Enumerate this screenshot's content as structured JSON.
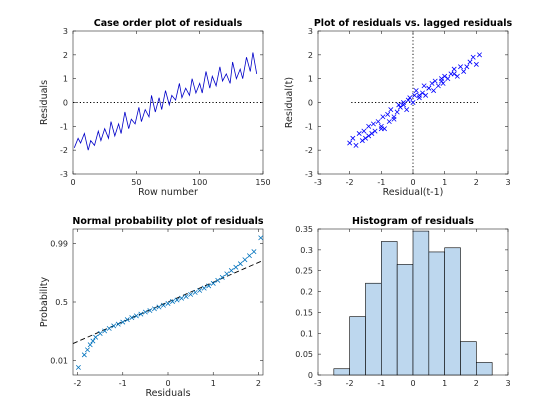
{
  "colors": {
    "residual_line": "#0000c8",
    "lag_marker": "#0000ff",
    "prob_marker": "#0072bd",
    "hist_fill": "#bdd7ee"
  },
  "chart_data": [
    {
      "type": "line",
      "title": "Case order plot of residuals",
      "xlabel": "Row number",
      "ylabel": "Residuals",
      "xlim": [
        0,
        150
      ],
      "ylim": [
        -3,
        3
      ],
      "xticks": [
        0,
        50,
        100,
        150
      ],
      "yticks": [
        -3,
        -2,
        -1,
        0,
        1,
        2,
        3
      ],
      "reference_line": {
        "y": 0,
        "style": "dotted"
      },
      "series": [
        {
          "x": [
            1,
            4,
            6,
            9,
            12,
            14,
            17,
            20,
            22,
            25,
            28,
            30,
            33,
            36,
            38,
            41,
            44,
            46,
            49,
            52,
            54,
            57,
            60,
            62,
            65,
            68,
            70,
            73,
            76,
            78,
            81,
            84,
            86,
            89,
            92,
            94,
            97,
            100,
            102,
            105,
            108,
            110,
            113,
            116,
            118,
            121,
            124,
            126,
            129,
            132,
            134,
            137,
            140,
            142,
            145
          ],
          "y": [
            -1.9,
            -1.5,
            -1.7,
            -1.3,
            -2.0,
            -1.6,
            -1.8,
            -1.2,
            -1.6,
            -1.1,
            -1.5,
            -0.8,
            -1.4,
            -0.9,
            -1.3,
            -0.4,
            -1.1,
            -0.7,
            -0.9,
            -0.2,
            -0.8,
            -0.3,
            -0.6,
            0.3,
            -0.4,
            0.2,
            -0.3,
            0.5,
            -0.1,
            0.3,
            0.1,
            0.8,
            0.2,
            0.6,
            0.3,
            1.0,
            0.4,
            0.8,
            0.4,
            1.3,
            0.6,
            1.1,
            0.7,
            1.5,
            0.9,
            1.2,
            0.8,
            1.7,
            1.0,
            1.4,
            1.0,
            1.9,
            1.3,
            2.1,
            1.2
          ]
        }
      ]
    },
    {
      "type": "scatter",
      "title": "Plot of residuals vs. lagged residuals",
      "xlabel": "Residual(t-1)",
      "ylabel": "Residual(t)",
      "xlim": [
        -3,
        3
      ],
      "ylim": [
        -3,
        3
      ],
      "xticks": [
        -3,
        -2,
        -1,
        0,
        1,
        2,
        3
      ],
      "yticks": [
        -3,
        -2,
        -1,
        0,
        1,
        2,
        3
      ],
      "reference_lines": {
        "x": 0,
        "y": 0,
        "style": "dotted"
      },
      "series": [
        {
          "x": [
            -2.0,
            -1.9,
            -1.8,
            -1.7,
            -1.6,
            -1.55,
            -1.5,
            -1.4,
            -1.3,
            -1.25,
            -1.2,
            -1.1,
            -1.0,
            -0.95,
            -0.9,
            -0.8,
            -0.75,
            -0.7,
            -0.6,
            -0.5,
            -0.45,
            -0.4,
            -0.3,
            -0.2,
            -0.15,
            -0.1,
            0.0,
            0.05,
            0.1,
            0.2,
            0.3,
            0.35,
            0.4,
            0.5,
            0.6,
            0.65,
            0.7,
            0.8,
            0.9,
            0.95,
            1.0,
            1.1,
            1.2,
            1.3,
            1.4,
            1.5,
            1.6,
            1.8,
            1.9,
            2.0,
            2.1,
            1.7,
            1.3,
            0.9,
            0.5,
            0.2,
            -0.3,
            -0.6,
            -1.0,
            -1.4
          ],
          "y": [
            -1.7,
            -1.5,
            -1.8,
            -1.3,
            -1.6,
            -1.2,
            -1.5,
            -1.0,
            -1.3,
            -0.9,
            -1.2,
            -0.8,
            -1.0,
            -0.6,
            -1.1,
            -0.5,
            -0.8,
            -0.3,
            -0.6,
            -0.4,
            -0.1,
            -0.2,
            0.0,
            -0.3,
            0.1,
            0.2,
            0.0,
            0.3,
            0.5,
            0.2,
            0.4,
            0.7,
            0.3,
            0.6,
            0.8,
            0.5,
            0.9,
            0.7,
            1.0,
            0.8,
            1.1,
            1.0,
            1.2,
            1.4,
            1.1,
            1.5,
            1.3,
            1.7,
            1.9,
            1.6,
            2.0,
            1.5,
            1.2,
            0.9,
            0.6,
            0.3,
            -0.1,
            -0.7,
            -1.1,
            -1.4
          ]
        }
      ]
    },
    {
      "type": "scatter",
      "title": "Normal probability plot of residuals",
      "xlabel": "Residuals",
      "ylabel": "Probability",
      "xlim": [
        -2.1,
        2.1
      ],
      "ylim": [
        -2.9,
        2.9
      ],
      "xticks": [
        -2,
        -1,
        0,
        1,
        2
      ],
      "yticks": [
        -2.3263,
        0,
        2.3263
      ],
      "ytick_labels": [
        "0.01",
        "0.5",
        "0.99"
      ],
      "reference_line": {
        "from": [
          -2.1,
          -1.65
        ],
        "to": [
          2.1,
          1.65
        ],
        "style": "dashed"
      },
      "series": [
        {
          "x": [
            -1.98,
            -1.85,
            -1.78,
            -1.72,
            -1.66,
            -1.6,
            -1.5,
            -1.4,
            -1.3,
            -1.2,
            -1.1,
            -1.0,
            -0.9,
            -0.8,
            -0.7,
            -0.6,
            -0.5,
            -0.4,
            -0.3,
            -0.2,
            -0.1,
            0.0,
            0.1,
            0.2,
            0.3,
            0.4,
            0.5,
            0.6,
            0.7,
            0.8,
            0.9,
            1.0,
            1.1,
            1.2,
            1.3,
            1.4,
            1.5,
            1.6,
            1.7,
            1.8,
            1.9,
            2.05
          ],
          "y": [
            -2.6,
            -2.1,
            -1.9,
            -1.7,
            -1.55,
            -1.4,
            -1.25,
            -1.15,
            -1.05,
            -0.95,
            -0.88,
            -0.8,
            -0.7,
            -0.62,
            -0.55,
            -0.48,
            -0.4,
            -0.34,
            -0.27,
            -0.2,
            -0.13,
            -0.06,
            0.02,
            0.08,
            0.15,
            0.22,
            0.3,
            0.38,
            0.46,
            0.55,
            0.64,
            0.74,
            0.86,
            0.98,
            1.12,
            1.25,
            1.38,
            1.52,
            1.68,
            1.84,
            2.0,
            2.55
          ]
        }
      ]
    },
    {
      "type": "bar",
      "title": "Histogram of residuals",
      "xlabel": "",
      "ylabel": "",
      "xlim": [
        -3,
        3
      ],
      "ylim": [
        0,
        0.35
      ],
      "xticks": [
        -3,
        -2,
        -1,
        0,
        1,
        2,
        3
      ],
      "yticks": [
        0,
        0.05,
        0.1,
        0.15,
        0.2,
        0.25,
        0.3,
        0.35
      ],
      "bin_edges": [
        -2.5,
        -2.0,
        -1.5,
        -1.0,
        -0.5,
        0.0,
        0.5,
        1.0,
        1.5,
        2.0,
        2.5
      ],
      "values": [
        0.015,
        0.14,
        0.22,
        0.32,
        0.265,
        0.345,
        0.295,
        0.305,
        0.08,
        0.03
      ]
    }
  ]
}
